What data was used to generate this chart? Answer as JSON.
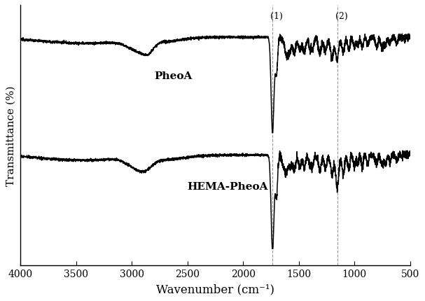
{
  "xlabel": "Wavenumber (cm⁻¹)",
  "ylabel": "Transmittance (%)",
  "xmin": 500,
  "xmax": 4000,
  "marker1_wn": 1735.8,
  "marker2_wn": 1153.9,
  "marker1_label": "(1)",
  "marker2_label": "(2)",
  "label1_text": "PheoA",
  "label2_text": "HEMA-PheoA",
  "line_color": "#000000",
  "dashed_line_color": "#999999",
  "background_color": "#ffffff",
  "fig_width": 6.07,
  "fig_height": 4.31,
  "dpi": 100
}
